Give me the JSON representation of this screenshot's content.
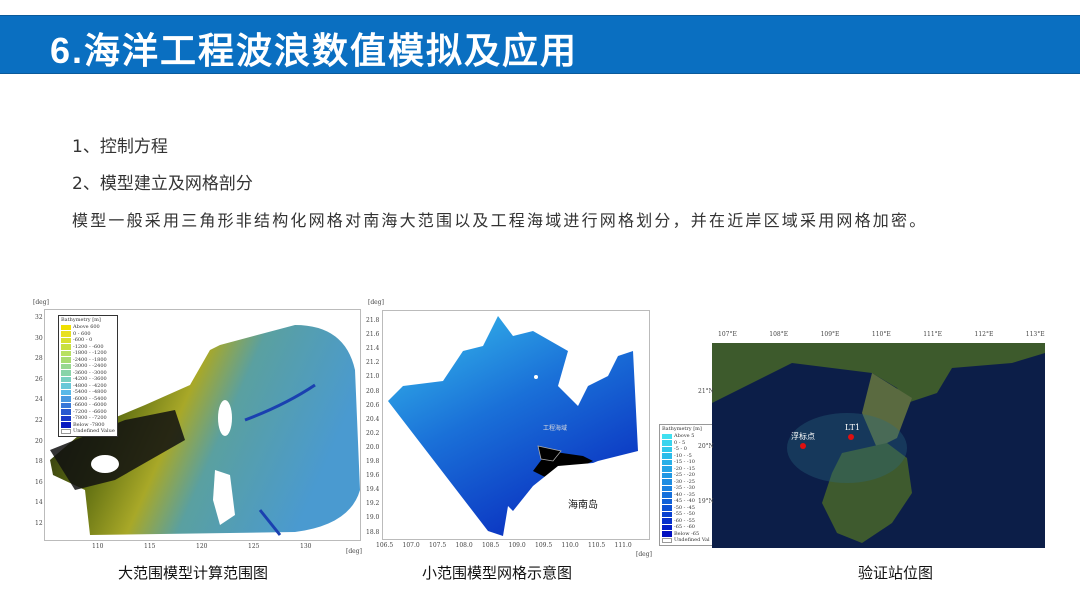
{
  "header": {
    "title": "6.海洋工程波浪数值模拟及应用",
    "color": "#0a6fc1"
  },
  "content": {
    "item1": "1、控制方程",
    "item2": "2、模型建立及网格剖分",
    "paragraph": "模型一般采用三角形非结构化网格对南海大范围以及工程海域进行网格划分，并在近岸区域采用网格加密。"
  },
  "figures": [
    {
      "caption": "大范围模型计算范围图",
      "unit_y": "[deg]",
      "unit_x": "[deg]",
      "y_ticks": [
        "32",
        "30",
        "28",
        "26",
        "24",
        "22",
        "20",
        "18",
        "16",
        "14",
        "12"
      ],
      "x_ticks": [
        "110",
        "115",
        "120",
        "125",
        "130"
      ],
      "legend": {
        "title": "Bathymetry [m]",
        "entries": [
          {
            "label": "Above 600",
            "color": "#f0e000"
          },
          {
            "label": "0 - 600",
            "color": "#e8e020"
          },
          {
            "label": "-600 - 0",
            "color": "#d8e030"
          },
          {
            "label": "-1200 - -600",
            "color": "#c8e040"
          },
          {
            "label": "-1800 - -1200",
            "color": "#b8e060"
          },
          {
            "label": "-2400 - -1800",
            "color": "#a8dc70"
          },
          {
            "label": "-3000 - -2400",
            "color": "#98d890"
          },
          {
            "label": "-3600 - -3000",
            "color": "#88d4a8"
          },
          {
            "label": "-4200 - -3600",
            "color": "#78d0c0"
          },
          {
            "label": "-4800 - -4200",
            "color": "#68c8d8"
          },
          {
            "label": "-5400 - -4800",
            "color": "#58b8e8"
          },
          {
            "label": "-6000 - -5400",
            "color": "#4898e0"
          },
          {
            "label": "-6600 - -6000",
            "color": "#3878d8"
          },
          {
            "label": "-7200 - -6600",
            "color": "#2858d0"
          },
          {
            "label": "-7800 - -7200",
            "color": "#1838c8"
          },
          {
            "label": "Below -7800",
            "color": "#0818c0"
          },
          {
            "label": "Undefined Value",
            "color": "#ffffff"
          }
        ]
      }
    },
    {
      "caption": "小范围模型网格示意图",
      "unit_y": "[deg]",
      "unit_x": "[deg]",
      "y_ticks": [
        "21.8",
        "21.6",
        "21.4",
        "21.2",
        "21.0",
        "20.8",
        "20.6",
        "20.4",
        "20.2",
        "20.0",
        "19.8",
        "19.6",
        "19.4",
        "19.2",
        "19.0",
        "18.8"
      ],
      "x_ticks": [
        "106.5",
        "107.0",
        "107.5",
        "108.0",
        "108.5",
        "109.0",
        "109.5",
        "110.0",
        "110.5",
        "111.0"
      ],
      "map_label": "海南岛",
      "site_label": "工程海域",
      "legend": {
        "title": "Bathymetry [m]",
        "entries": [
          {
            "label": "Above 5",
            "color": "#40e0f0"
          },
          {
            "label": "0 - 5",
            "color": "#38d4ee"
          },
          {
            "label": "-5 - 0",
            "color": "#30c8ec"
          },
          {
            "label": "-10 - -5",
            "color": "#2cbcea"
          },
          {
            "label": "-15 - -10",
            "color": "#28b0e8"
          },
          {
            "label": "-20 - -15",
            "color": "#24a4e6"
          },
          {
            "label": "-25 - -20",
            "color": "#2098e4"
          },
          {
            "label": "-30 - -25",
            "color": "#1c8ce2"
          },
          {
            "label": "-35 - -30",
            "color": "#1880e0"
          },
          {
            "label": "-40 - -35",
            "color": "#1470dc"
          },
          {
            "label": "-45 - -40",
            "color": "#1060d8"
          },
          {
            "label": "-50 - -45",
            "color": "#0c50d4"
          },
          {
            "label": "-55 - -50",
            "color": "#0840d0"
          },
          {
            "label": "-60 - -55",
            "color": "#0630cc"
          },
          {
            "label": "-65 - -60",
            "color": "#0420c8"
          },
          {
            "label": "Below -65",
            "color": "#0210c0"
          },
          {
            "label": "Undefined Val",
            "color": "#ffffff"
          }
        ]
      }
    },
    {
      "caption": "验证站位图",
      "x_ticks": [
        "107°E",
        "108°E",
        "109°E",
        "110°E",
        "111°E",
        "112°E",
        "113°E"
      ],
      "y_ticks": [
        "21°N",
        "20°N",
        "19°N"
      ],
      "stations": [
        {
          "label": "浮标点",
          "color": "#e01010"
        },
        {
          "label": "LT1",
          "color": "#e01010"
        }
      ]
    }
  ]
}
